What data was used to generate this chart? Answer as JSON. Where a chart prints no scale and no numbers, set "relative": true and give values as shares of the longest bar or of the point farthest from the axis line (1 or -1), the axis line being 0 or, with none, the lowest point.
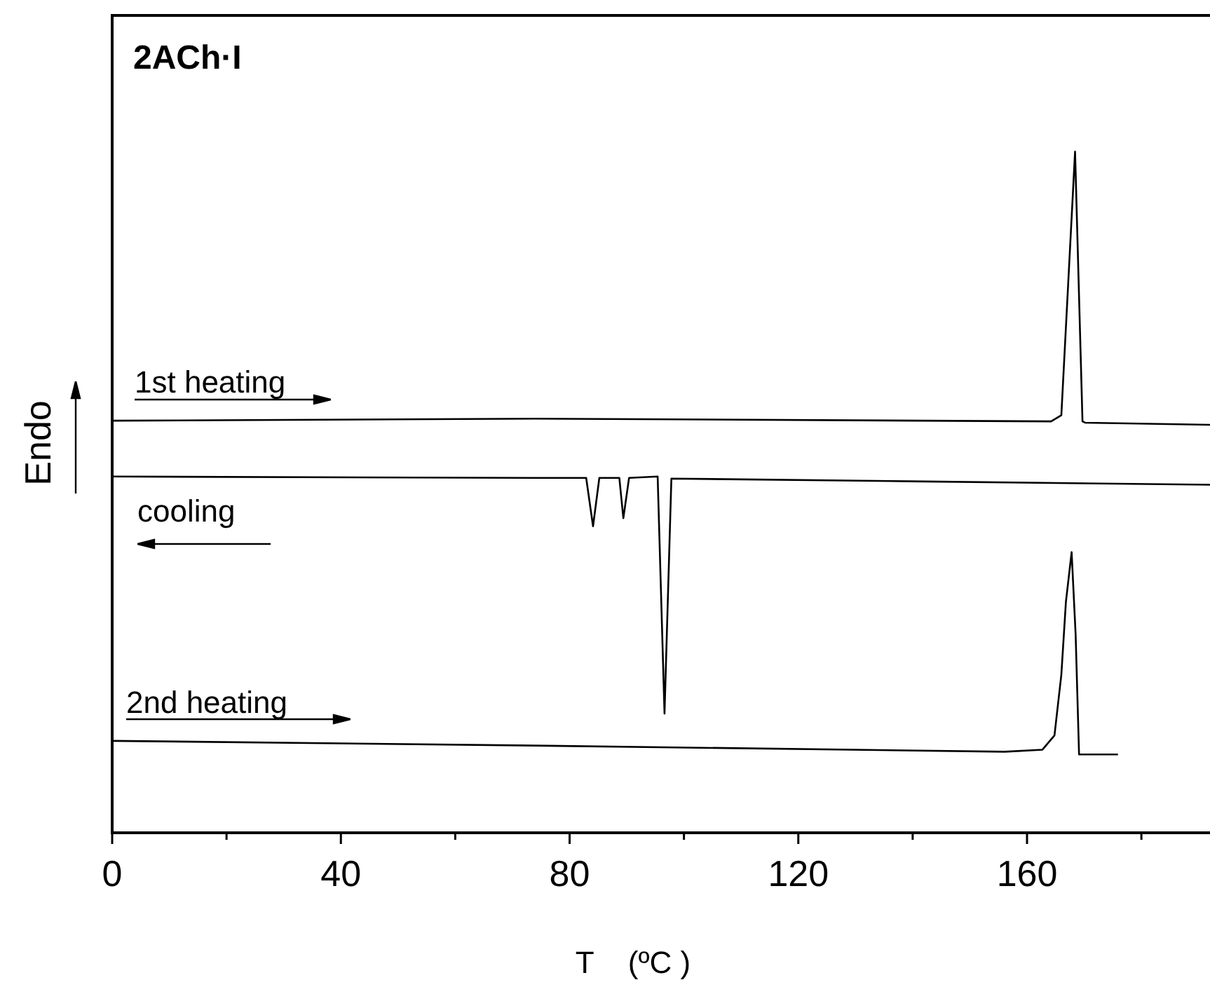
{
  "chart_data": {
    "type": "line",
    "title": "2ACh·I",
    "xlabel": "T    (ºC )",
    "ylabel": "Endo",
    "relative": true,
    "legend": "left",
    "grid": false,
    "marker": "none",
    "line_style": "solid",
    "tick_labels": "x",
    "xlim": [
      0,
      192
    ],
    "xticks": [
      0,
      {
        "value": 20,
        "label": null
      },
      40,
      {
        "value": 60,
        "label": null
      },
      80,
      {
        "value": 100,
        "label": null
      },
      120,
      {
        "value": 140,
        "label": null
      },
      160,
      {
        "value": 180,
        "label": null
      }
    ],
    "series": [
      {
        "name": "1st heating",
        "color": "#000000",
        "x": [
          0,
          74,
          164.2,
          166,
          168.4,
          169.7,
          170.2,
          192
        ],
        "values": [
          0.605,
          0.608,
          0.604,
          0.613,
          1.0,
          0.604,
          0.602,
          0.599
        ]
      },
      {
        "name": "cooling",
        "color": "#000000",
        "x": [
          0,
          74,
          82.9,
          84.1,
          85.2,
          88.7,
          89.4,
          90.4,
          95.4,
          96.6,
          97.8,
          139.7,
          192
        ],
        "values": [
          0.523,
          0.521,
          0.521,
          0.45,
          0.521,
          0.521,
          0.462,
          0.521,
          0.523,
          0.175,
          0.52,
          0.516,
          0.511
        ]
      },
      {
        "name": "2nd heating",
        "color": "#000000",
        "x": [
          0,
          74,
          156.1,
          162.7,
          164.8,
          166,
          166.8,
          167.8,
          168.5,
          169.1,
          175.9
        ],
        "values": [
          0.135,
          0.128,
          0.119,
          0.122,
          0.143,
          0.232,
          0.339,
          0.412,
          0.291,
          0.115,
          0.115
        ]
      }
    ]
  }
}
